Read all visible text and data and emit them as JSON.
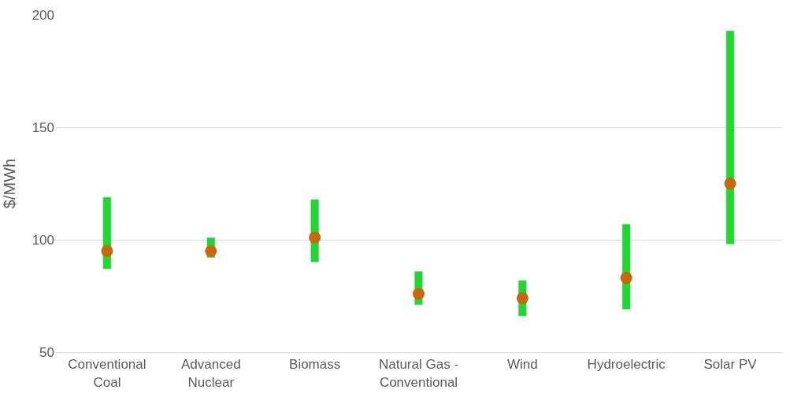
{
  "chart_data": {
    "type": "bar",
    "ylabel": "$/MWh",
    "categories": [
      "Conventional Coal",
      "Advanced Nuclear",
      "Biomass",
      "Natural Gas - Conventional",
      "Wind",
      "Hydroelectric",
      "Solar PV"
    ],
    "series": [
      {
        "color": "#22d633",
        "base": [
          87,
          92,
          90,
          71,
          66,
          69,
          98
        ],
        "values": [
          32,
          9,
          28,
          15,
          16,
          38,
          95
        ]
      },
      {
        "type": "scatter",
        "color": "#c8670c",
        "marker": "circle",
        "x": [
          "Conventional Coal",
          "Advanced Nuclear",
          "Biomass",
          "Natural Gas - Conventional",
          "Wind",
          "Hydroelectric",
          "Solar PV"
        ],
        "values": [
          95,
          95,
          101,
          76,
          74,
          83,
          125
        ]
      }
    ],
    "ylim": [
      50,
      200
    ],
    "yticks": [
      50,
      100,
      150,
      200
    ],
    "grid": "y"
  }
}
